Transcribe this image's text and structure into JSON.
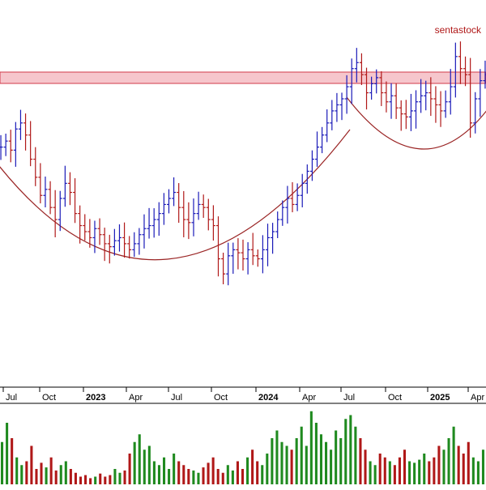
{
  "watermark": "sentastock",
  "colors": {
    "up": "#1a1ab8",
    "down": "#b01818",
    "volume_up": "#1f8a1f",
    "volume_down": "#b01818",
    "resistance_fill": "#f6c6cc",
    "resistance_stroke": "#d23a4a",
    "cup_curve": "#9a2424",
    "axis": "#000000",
    "background": "#ffffff"
  },
  "chart_data": {
    "type": "candlestick",
    "title": "",
    "xlabel": "",
    "ylabel": "",
    "x_ticks": [
      "Jul",
      "Oct",
      "2023",
      "Apr",
      "Jul",
      "Oct",
      "2024",
      "Apr",
      "Jul",
      "Oct",
      "2025",
      "Apr"
    ],
    "x_tick_bold": [
      "2023",
      "2024",
      "2025"
    ],
    "x_range_months": [
      "2022-07",
      "2025-05"
    ],
    "grid": false,
    "legend": "none",
    "price_series": {
      "name": "",
      "close_relative": [
        0.72,
        0.74,
        0.71,
        0.78,
        0.8,
        0.76,
        0.68,
        0.62,
        0.56,
        0.58,
        0.52,
        0.48,
        0.55,
        0.6,
        0.57,
        0.5,
        0.46,
        0.44,
        0.42,
        0.45,
        0.43,
        0.4,
        0.39,
        0.41,
        0.42,
        0.4,
        0.38,
        0.4,
        0.43,
        0.45,
        0.46,
        0.48,
        0.5,
        0.53,
        0.55,
        0.57,
        0.52,
        0.48,
        0.47,
        0.5,
        0.53,
        0.52,
        0.48,
        0.46,
        0.35,
        0.3,
        0.36,
        0.38,
        0.37,
        0.35,
        0.38,
        0.36,
        0.35,
        0.38,
        0.42,
        0.44,
        0.48,
        0.52,
        0.55,
        0.53,
        0.56,
        0.6,
        0.64,
        0.68,
        0.72,
        0.76,
        0.8,
        0.84,
        0.86,
        0.88,
        0.92,
        0.98,
        1.0,
        0.96,
        0.9,
        0.93,
        0.95,
        0.9,
        0.87,
        0.89,
        0.85,
        0.83,
        0.82,
        0.84,
        0.87,
        0.89,
        0.9,
        0.88,
        0.86,
        0.84,
        0.87,
        0.92,
        1.02,
        0.98,
        0.96,
        0.8,
        0.88,
        0.94,
        0.96
      ]
    },
    "volume_series": {
      "name": "",
      "values_relative": [
        0.55,
        0.8,
        0.6,
        0.35,
        0.25,
        0.3,
        0.5,
        0.2,
        0.28,
        0.22,
        0.35,
        0.18,
        0.25,
        0.3,
        0.2,
        0.15,
        0.1,
        0.12,
        0.08,
        0.1,
        0.14,
        0.1,
        0.12,
        0.2,
        0.15,
        0.18,
        0.4,
        0.55,
        0.65,
        0.45,
        0.5,
        0.3,
        0.25,
        0.35,
        0.2,
        0.4,
        0.3,
        0.25,
        0.2,
        0.18,
        0.15,
        0.22,
        0.28,
        0.35,
        0.2,
        0.15,
        0.25,
        0.18,
        0.3,
        0.2,
        0.35,
        0.45,
        0.3,
        0.25,
        0.4,
        0.6,
        0.7,
        0.55,
        0.5,
        0.45,
        0.6,
        0.75,
        0.5,
        0.95,
        0.8,
        0.65,
        0.55,
        0.45,
        0.7,
        0.6,
        0.85,
        0.9,
        0.75,
        0.6,
        0.45,
        0.3,
        0.25,
        0.4,
        0.35,
        0.3,
        0.25,
        0.35,
        0.45,
        0.3,
        0.28,
        0.32,
        0.4,
        0.3,
        0.35,
        0.5,
        0.45,
        0.6,
        0.75,
        0.5,
        0.4,
        0.55,
        0.35,
        0.3,
        0.45
      ]
    },
    "annotations": [
      {
        "type": "resistance_band",
        "label": ""
      },
      {
        "type": "cup_curve",
        "label": ""
      },
      {
        "type": "cup_curve",
        "label": ""
      }
    ]
  }
}
